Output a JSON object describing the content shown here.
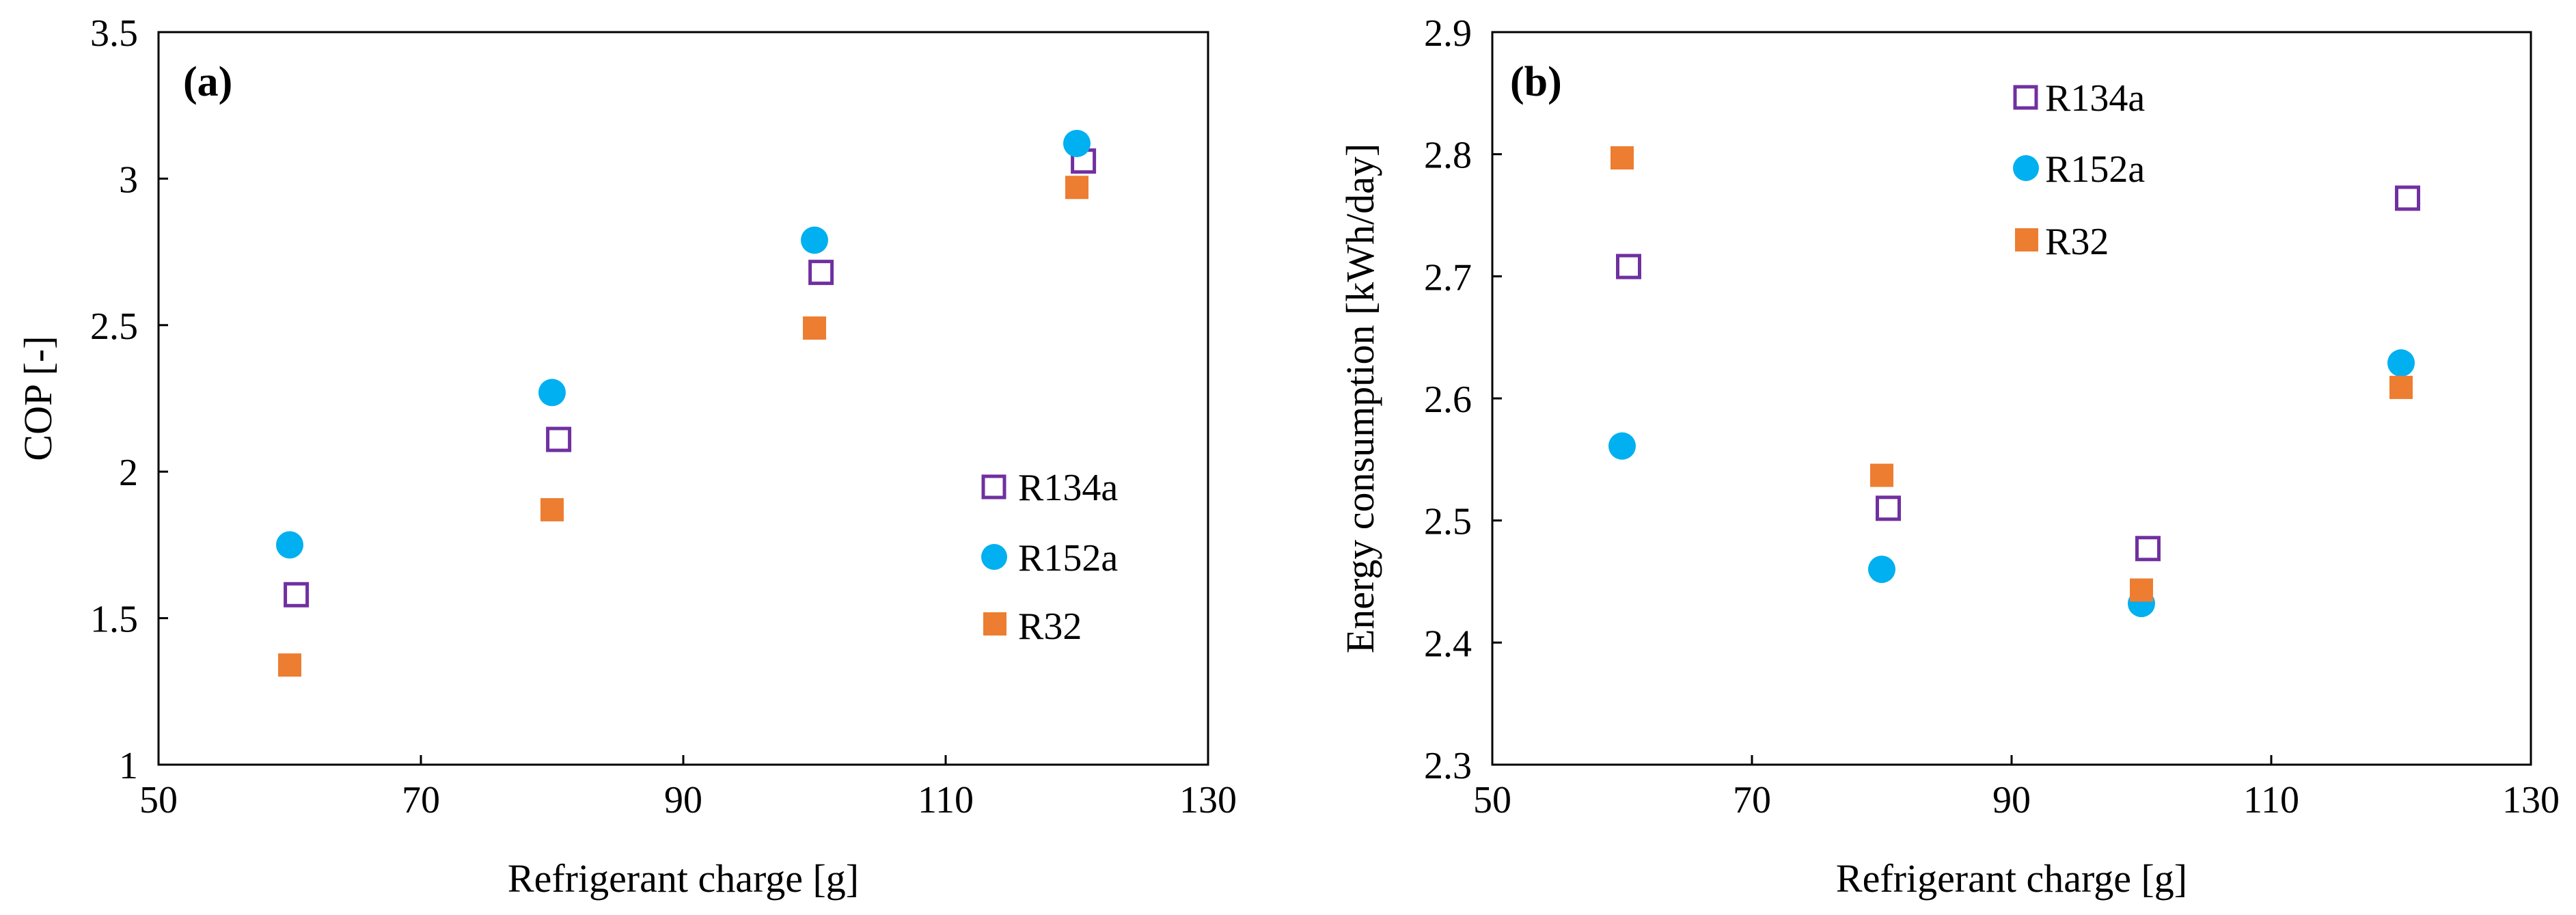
{
  "chart_data": [
    {
      "type": "scatter",
      "panel_label": "(a)",
      "xlabel": "Refrigerant charge [g]",
      "ylabel": "COP [-]",
      "xlim": [
        50,
        130
      ],
      "ylim": [
        1,
        3.5
      ],
      "xticks": [
        50,
        70,
        90,
        110,
        130
      ],
      "yticks": [
        1,
        1.5,
        2,
        2.5,
        3,
        3.5
      ],
      "xtick_labels": [
        "50",
        "70",
        "90",
        "110",
        "130"
      ],
      "ytick_labels": [
        "1",
        "1.5",
        "2",
        "2.5",
        "3",
        "3.5"
      ],
      "grid": false,
      "legend_position": "lower-right",
      "series": [
        {
          "name": "R134a",
          "marker": "open-square",
          "color": "#7030A0",
          "x": [
            60.5,
            80.5,
            100.5,
            120.5
          ],
          "y": [
            1.58,
            2.11,
            2.68,
            3.06
          ]
        },
        {
          "name": "R152a",
          "marker": "filled-circle",
          "color": "#00B0F0",
          "x": [
            60,
            80,
            100,
            120
          ],
          "y": [
            1.75,
            2.27,
            2.79,
            3.12
          ]
        },
        {
          "name": "R32",
          "marker": "filled-square",
          "color": "#ED7D31",
          "x": [
            60,
            80,
            100,
            120
          ],
          "y": [
            1.34,
            1.87,
            2.49,
            2.97
          ]
        }
      ]
    },
    {
      "type": "scatter",
      "panel_label": "(b)",
      "xlabel": "Refrigerant charge [g]",
      "ylabel": "Energy consumption [kWh/day]",
      "xlim": [
        50,
        130
      ],
      "ylim": [
        2.3,
        2.9
      ],
      "xticks": [
        50,
        70,
        90,
        110,
        130
      ],
      "yticks": [
        2.3,
        2.4,
        2.5,
        2.6,
        2.7,
        2.8,
        2.9
      ],
      "xtick_labels": [
        "50",
        "70",
        "90",
        "110",
        "130"
      ],
      "ytick_labels": [
        "2.3",
        "2.4",
        "2.5",
        "2.6",
        "2.7",
        "2.8",
        "2.9"
      ],
      "grid": false,
      "legend_position": "top-center",
      "series": [
        {
          "name": "R134a",
          "marker": "open-square",
          "color": "#7030A0",
          "x": [
            60.5,
            80.5,
            100.5,
            120.5
          ],
          "y": [
            2.708,
            2.51,
            2.477,
            2.764
          ]
        },
        {
          "name": "R152a",
          "marker": "filled-circle",
          "color": "#00B0F0",
          "x": [
            60,
            80,
            100,
            120
          ],
          "y": [
            2.561,
            2.46,
            2.432,
            2.629
          ]
        },
        {
          "name": "R32",
          "marker": "filled-square",
          "color": "#ED7D31",
          "x": [
            60,
            80,
            100,
            120
          ],
          "y": [
            2.797,
            2.537,
            2.443,
            2.609
          ]
        }
      ]
    }
  ]
}
